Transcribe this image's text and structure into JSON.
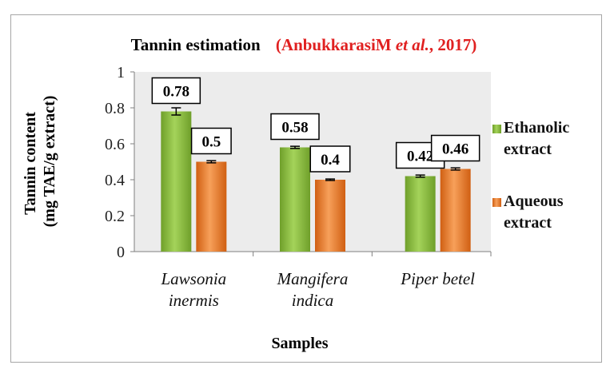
{
  "chart_data": {
    "type": "bar",
    "title": "Tannin estimation",
    "title_citation": "(AnbukkarasiM et al., 2017)",
    "title_citation_parts": [
      "(AnbukkarasiM ",
      "et al.",
      ", 2017)"
    ],
    "xlabel": "Samples",
    "ylabel_line1": "Tannin content",
    "ylabel_line2": "(mg TAE/g extract)",
    "ylim": [
      0,
      1
    ],
    "yticks": [
      "0",
      "0.2",
      "0.4",
      "0.6",
      "0.8",
      "1"
    ],
    "categories": [
      [
        "Lawsonia",
        "inermis"
      ],
      [
        "Mangifera",
        "indica"
      ],
      [
        "Piper betel"
      ]
    ],
    "series": [
      {
        "name_lines": [
          "Ethanolic",
          "extract"
        ],
        "values": [
          0.78,
          0.58,
          0.42
        ],
        "labels": [
          "0.78",
          "0.58",
          "0.42"
        ],
        "errors": [
          0.02,
          0.006,
          0.006
        ],
        "color": "#8cbf3f"
      },
      {
        "name_lines": [
          "Aqueous",
          "extract"
        ],
        "values": [
          0.5,
          0.4,
          0.46
        ],
        "labels": [
          "0.5",
          "0.4",
          "0.46"
        ],
        "errors": [
          0.006,
          0.004,
          0.006
        ],
        "color": "#ed7d31"
      }
    ],
    "grid": false,
    "legend": "right",
    "colors": {
      "citation": "#e02020",
      "plot_bg": "#ececec",
      "frame_border": "#a6a6a6"
    }
  }
}
